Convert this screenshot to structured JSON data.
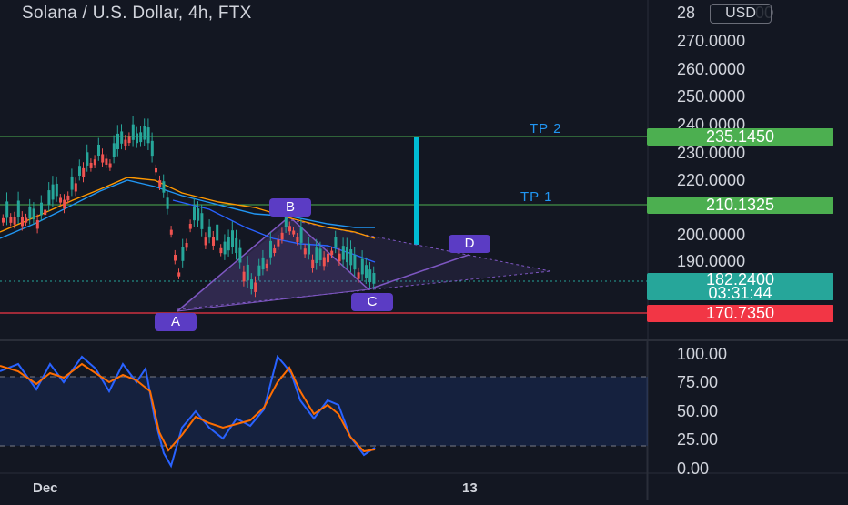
{
  "header": {
    "title": "Solana / U.S. Dollar, 4h, FTX",
    "currency_button": "USD"
  },
  "price_axis": {
    "ticks": [
      "28",
      "270.0000",
      "260.0000",
      "250.0000",
      "240.0000",
      "230.0000",
      "220.0000",
      "200.0000",
      "190.0000"
    ],
    "tick_28_suffix": "00"
  },
  "price_labels": {
    "tp2": "235.1450",
    "tp1": "210.1325",
    "current": "182.2400",
    "countdown": "03:31:44",
    "stop": "170.7350"
  },
  "annotations": {
    "tp2_label": "TP 2",
    "tp1_label": "TP 1",
    "point_a": "A",
    "point_b": "B",
    "point_c": "C",
    "point_d": "D"
  },
  "oscillator_axis": {
    "ticks": [
      "100.00",
      "75.00",
      "50.00",
      "25.00",
      "0.00"
    ]
  },
  "time_axis": {
    "labels": [
      "Dec",
      "13"
    ]
  },
  "colors": {
    "background": "#131722",
    "tp_line": "#4caf50",
    "stop_line": "#f23645",
    "current_label": "#26a69a",
    "pattern": "#7e57c2",
    "osc_blue": "#2962ff",
    "osc_orange": "#ff6d00",
    "target_bar": "#00bcd4"
  }
}
